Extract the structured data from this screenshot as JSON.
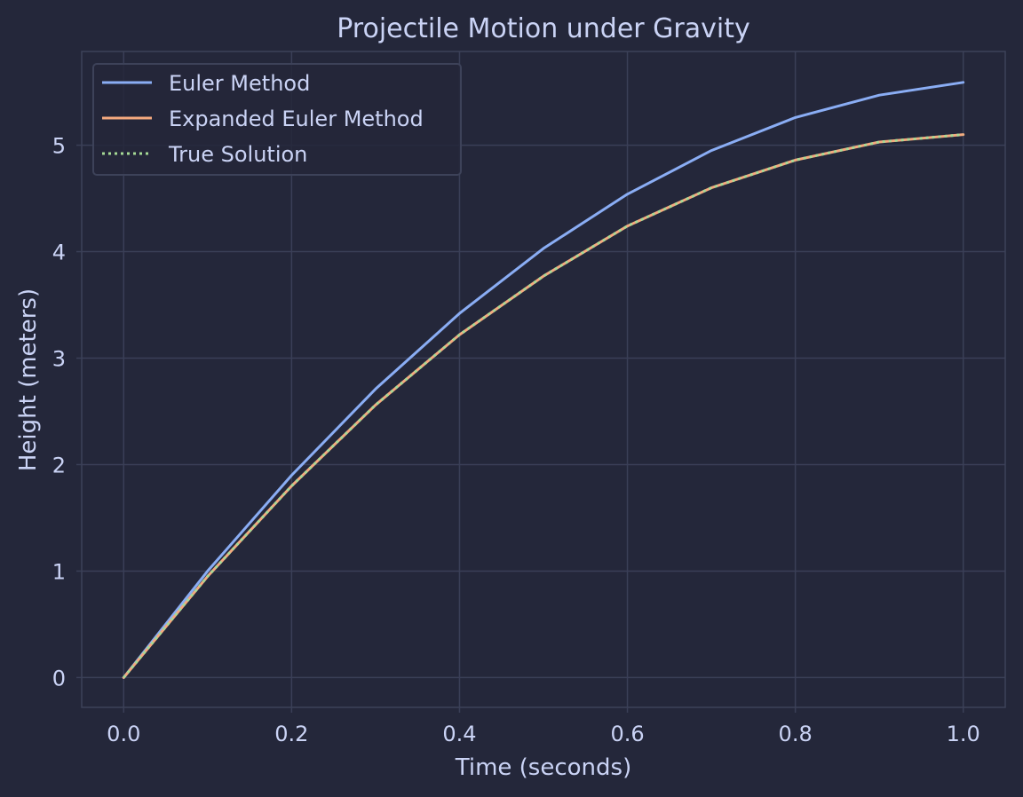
{
  "chart_data": {
    "type": "line",
    "title": "Projectile Motion under Gravity",
    "xlabel": "Time (seconds)",
    "ylabel": "Height (meters)",
    "xlim": [
      -0.05,
      1.05
    ],
    "ylim": [
      -0.28,
      5.88
    ],
    "xticks": [
      "0.0",
      "0.2",
      "0.4",
      "0.6",
      "0.8",
      "1.0"
    ],
    "yticks": [
      "0",
      "1",
      "2",
      "3",
      "4",
      "5"
    ],
    "grid": true,
    "legend_position": "top-left",
    "x": [
      0.0,
      0.1,
      0.2,
      0.3,
      0.4,
      0.5,
      0.6,
      0.7,
      0.8,
      0.9,
      1.0
    ],
    "series": [
      {
        "name": "Euler Method",
        "color": "#8aadf4",
        "style": "solid",
        "values": [
          0.0,
          1.0,
          1.9,
          2.71,
          3.42,
          4.03,
          4.54,
          4.95,
          5.26,
          5.47,
          5.59
        ]
      },
      {
        "name": "Expanded Euler Method",
        "color": "#f5a97f",
        "style": "solid",
        "values": [
          0.0,
          0.95,
          1.8,
          2.56,
          3.22,
          3.77,
          4.24,
          4.6,
          4.86,
          5.03,
          5.1
        ]
      },
      {
        "name": "True Solution",
        "color": "#a6da95",
        "style": "dotted",
        "values": [
          0.0,
          0.95,
          1.8,
          2.56,
          3.22,
          3.77,
          4.24,
          4.6,
          4.86,
          5.03,
          5.1
        ]
      }
    ],
    "colors": {
      "background": "#24273a",
      "grid": "#3a3f57",
      "text": "#cad3f5",
      "legend_bg": "#24273a",
      "legend_border": "#3d4259"
    }
  }
}
